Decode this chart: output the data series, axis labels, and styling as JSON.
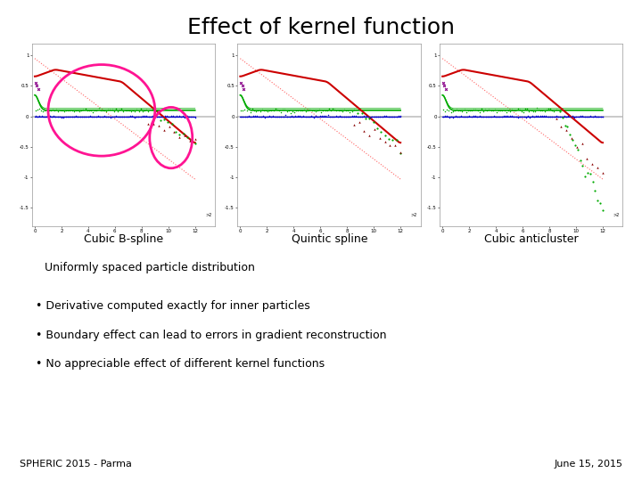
{
  "title": "Effect of kernel function",
  "subplot_labels": [
    "Cubic B-spline",
    "Quintic spline",
    "Cubic anticluster"
  ],
  "subtitle": "Uniformly spaced particle distribution",
  "bullets": [
    "Derivative computed exactly for inner particles",
    "Boundary effect can lead to errors in gradient reconstruction",
    "No appreciable effect of different kernel functions"
  ],
  "footer_left": "SPHERIC 2015 - Parma",
  "footer_right": "June 15, 2015",
  "background_color": "#ffffff",
  "title_fontsize": 18,
  "label_fontsize": 9,
  "subtitle_fontsize": 9,
  "bullet_fontsize": 9,
  "footer_fontsize": 8,
  "pink_color": "#FF1493",
  "red_color": "#CC0000",
  "green_color": "#00AA00",
  "blue_color": "#0000CC",
  "dotted_red": "#FF6666",
  "ylim": [
    -1.8,
    1.2
  ],
  "xlim": [
    -0.2,
    13.5
  ],
  "x_max": 12.0
}
